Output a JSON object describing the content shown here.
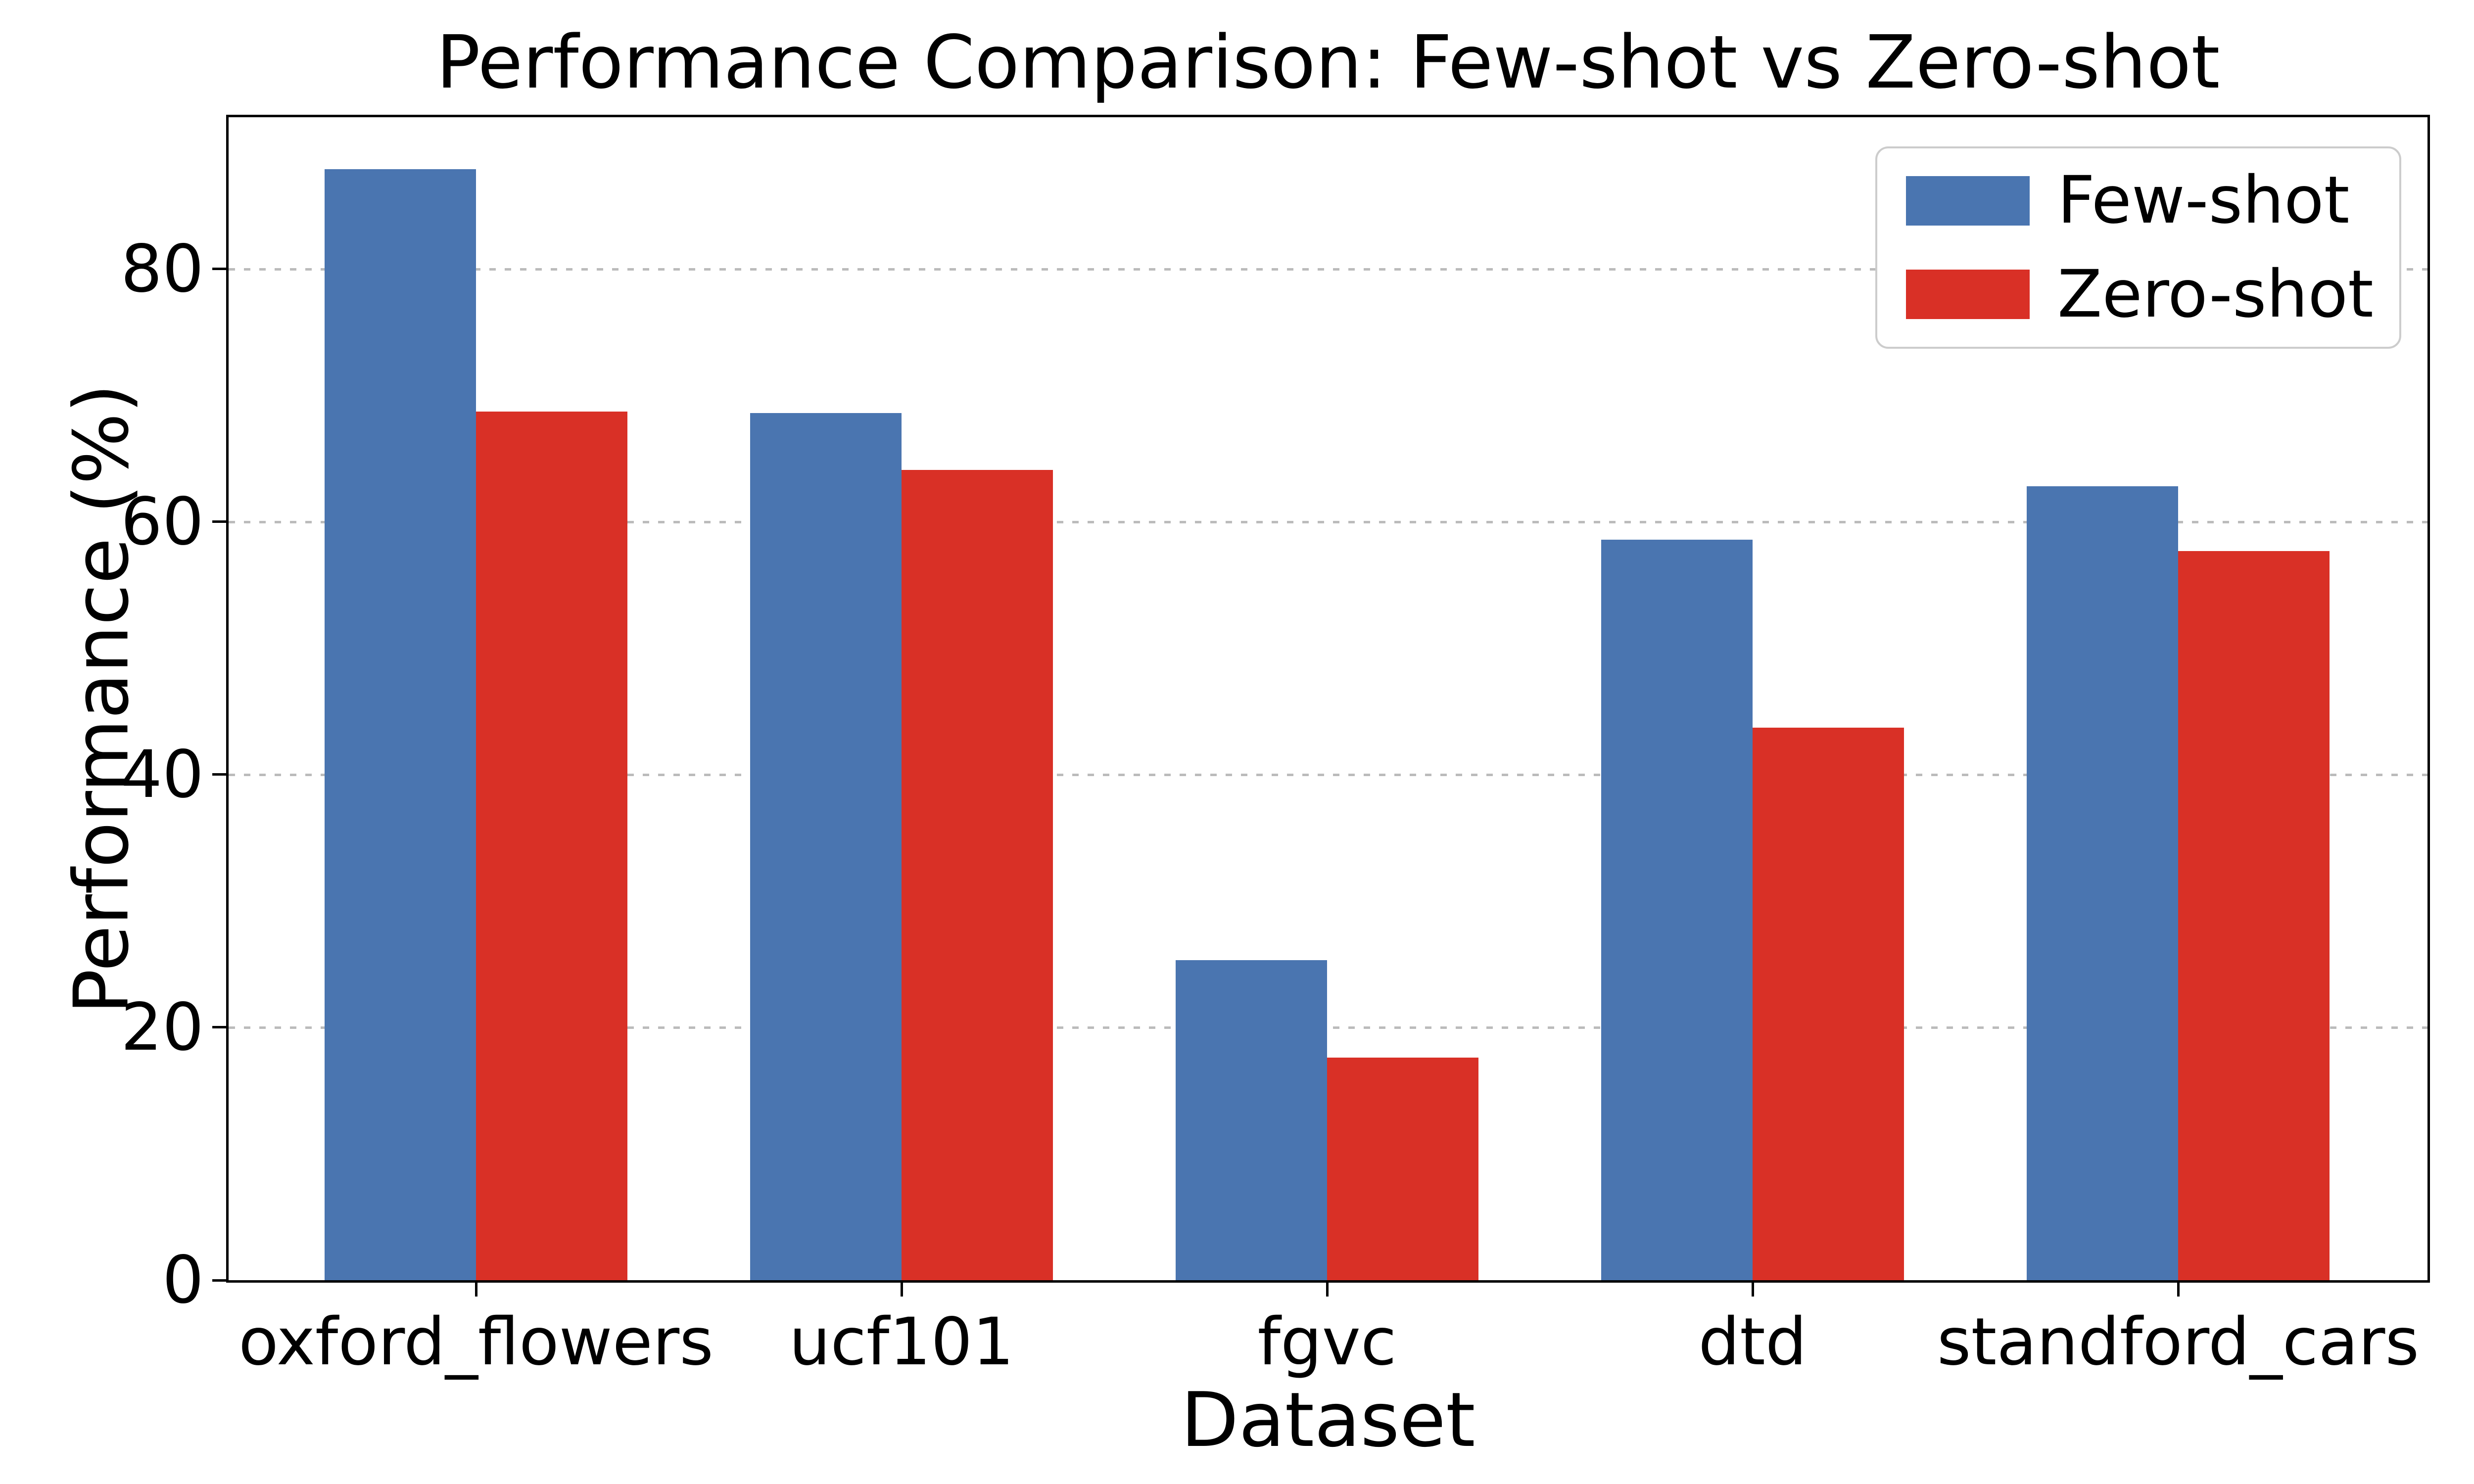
{
  "figure": {
    "background_color": "#ffffff",
    "text_color": "#000000",
    "gridline_color": "#bbbbbb",
    "legend_border_color": "#cccccc"
  },
  "chart_data": {
    "type": "bar",
    "title": "Performance Comparison: Few-shot vs Zero-shot",
    "xlabel": "Dataset",
    "ylabel": "Performance (%)",
    "categories": [
      "oxford_flowers",
      "ucf101",
      "fgvc",
      "dtd",
      "standford_cars"
    ],
    "series": [
      {
        "name": "Few-shot",
        "color": "#4a75b0",
        "values": [
          87.9,
          68.6,
          25.3,
          58.6,
          62.8
        ]
      },
      {
        "name": "Zero-shot",
        "color": "#d93026",
        "values": [
          68.7,
          64.1,
          17.6,
          43.7,
          57.7
        ]
      }
    ],
    "yticks": [
      0,
      20,
      40,
      60,
      80
    ],
    "ylim": [
      0,
      92
    ],
    "grid": "horizontal dashed",
    "legend_position": "upper right"
  }
}
